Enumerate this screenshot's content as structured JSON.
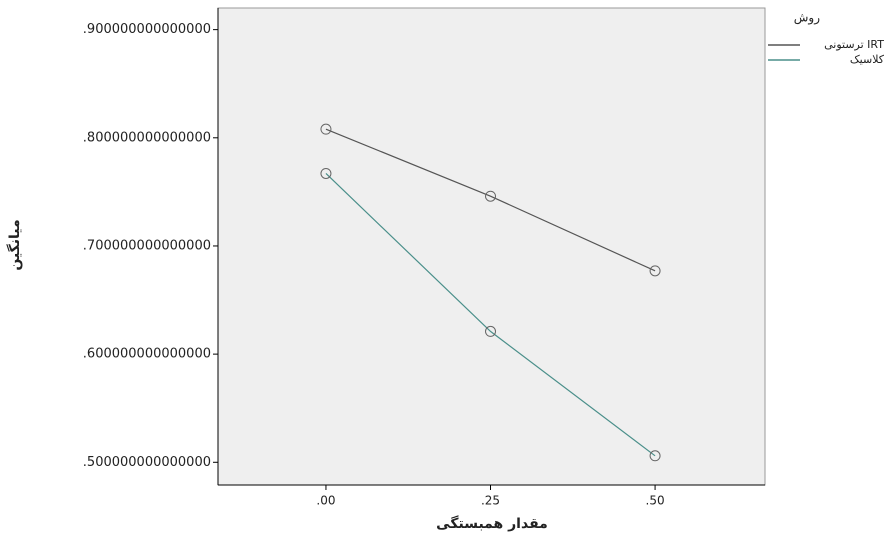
{
  "chart_data": {
    "type": "line",
    "y_label": "میانگین",
    "x_label": "مقدار همبستگی",
    "legend_title": "روش",
    "x": [
      0,
      0.25,
      0.5
    ],
    "series": [
      {
        "name": "ترستونی IRT",
        "color": "#555555",
        "values": [
          0.808,
          0.746,
          0.677
        ]
      },
      {
        "name": "کلاسیک",
        "color": "#4a8f8a",
        "values": [
          0.767,
          0.621,
          0.506
        ]
      }
    ],
    "xlim": [
      -0.164,
      0.667
    ],
    "xticks": [
      {
        "value": 0,
        "label": ".00"
      },
      {
        "value": 0.25,
        "label": ".25"
      },
      {
        "value": 0.5,
        "label": ".50"
      }
    ],
    "ylim": [
      0.479,
      0.92
    ],
    "yticks": [
      {
        "value": 0.5,
        "label": ".500000000000000"
      },
      {
        "value": 0.6,
        "label": ".600000000000000"
      },
      {
        "value": 0.7,
        "label": ".700000000000000"
      },
      {
        "value": 0.8,
        "label": ".800000000000000"
      },
      {
        "value": 0.9,
        "label": ".900000000000000"
      }
    ],
    "legend_position": "right"
  }
}
